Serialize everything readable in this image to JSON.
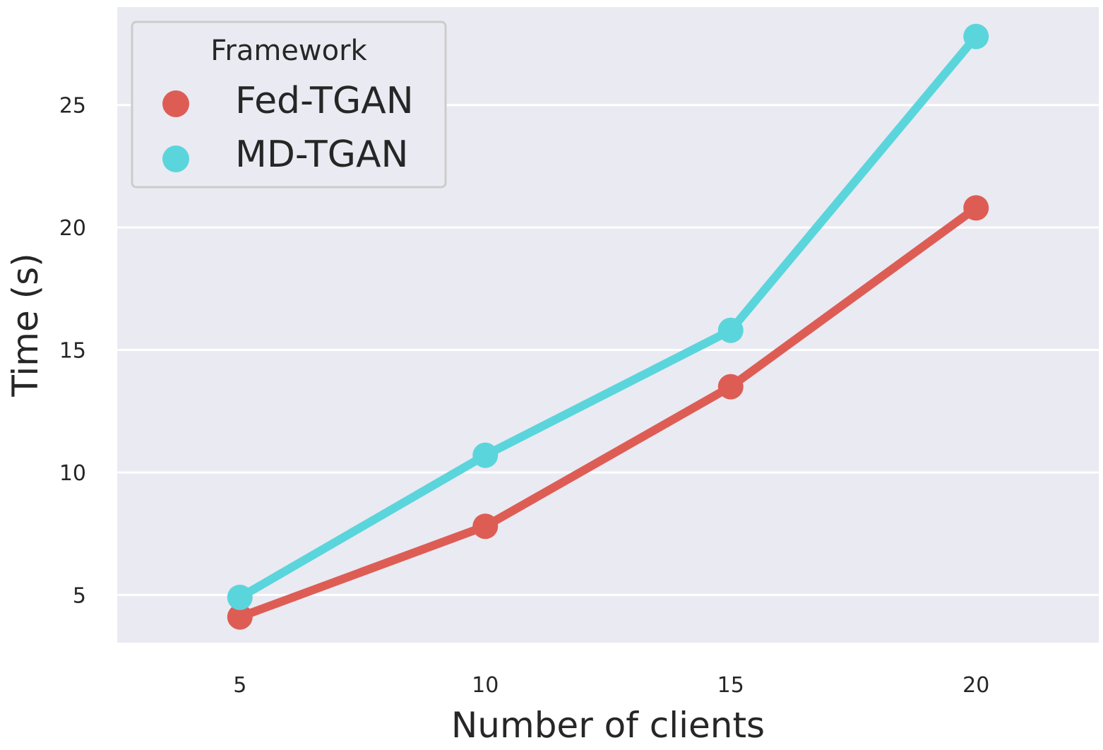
{
  "chart_data": {
    "type": "line",
    "x": [
      5,
      10,
      15,
      20
    ],
    "series": [
      {
        "name": "Fed-TGAN",
        "values": [
          4.1,
          7.8,
          13.5,
          20.8
        ],
        "color": "#dd5d55"
      },
      {
        "name": "MD-TGAN",
        "values": [
          4.9,
          10.7,
          15.8,
          27.8
        ],
        "color": "#5bd5dc"
      }
    ],
    "title": "",
    "xlabel": "Number of clients",
    "ylabel": "Time (s)",
    "xlim": [
      2.5,
      22.5
    ],
    "ylim": [
      3.05,
      29.0
    ],
    "xticks": [
      5,
      10,
      15,
      20
    ],
    "yticks": [
      5,
      10,
      15,
      20,
      25
    ],
    "grid": true,
    "legend": {
      "title": "Framework",
      "placement": "top-left"
    },
    "plot_background": "#eaeaf2",
    "grid_color": "#ffffff"
  }
}
